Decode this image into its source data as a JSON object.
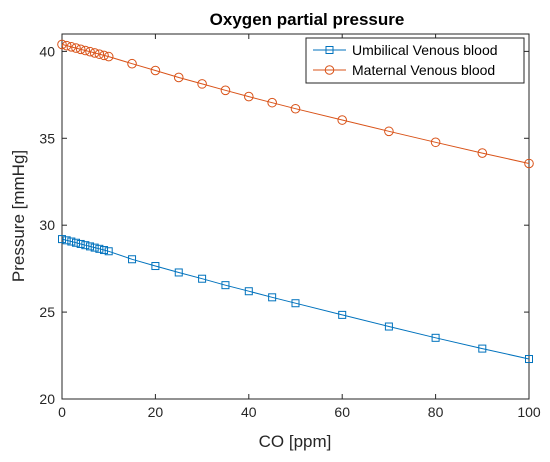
{
  "chart_data": {
    "type": "line",
    "title": "Oxygen partial pressure",
    "xlabel": "CO [ppm]",
    "ylabel": "Pressure [mmHg]",
    "xlim": [
      0,
      100
    ],
    "ylim": [
      20,
      41
    ],
    "xticks": [
      0,
      20,
      40,
      60,
      80,
      100
    ],
    "yticks": [
      20,
      25,
      30,
      35,
      40
    ],
    "grid": false,
    "legend_position": "top-right",
    "x": [
      0,
      1,
      2,
      3,
      4,
      5,
      6,
      7,
      8,
      9,
      10,
      15,
      20,
      25,
      30,
      35,
      40,
      45,
      50,
      60,
      70,
      80,
      90,
      100
    ],
    "series": [
      {
        "name": "Umbilical Venous blood",
        "color": "#0072BD",
        "marker": "square",
        "values": [
          29.2,
          29.13,
          29.06,
          28.99,
          28.92,
          28.85,
          28.78,
          28.71,
          28.64,
          28.57,
          28.5,
          28.04,
          27.65,
          27.28,
          26.92,
          26.55,
          26.2,
          25.85,
          25.51,
          24.84,
          24.17,
          23.52,
          22.9,
          22.3
        ]
      },
      {
        "name": "Maternal Venous blood",
        "color": "#D95319",
        "marker": "circle",
        "values": [
          40.4,
          40.33,
          40.26,
          40.19,
          40.12,
          40.05,
          39.98,
          39.91,
          39.84,
          39.77,
          39.7,
          39.29,
          38.9,
          38.5,
          38.13,
          37.76,
          37.4,
          37.05,
          36.7,
          36.05,
          35.4,
          34.77,
          34.15,
          33.55
        ]
      }
    ]
  }
}
